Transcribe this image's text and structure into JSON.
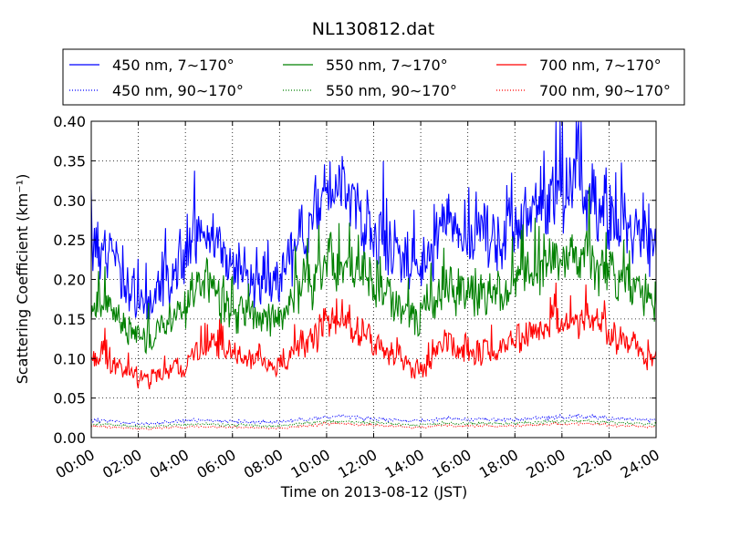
{
  "chart_data": {
    "type": "line",
    "title": "NL130812.dat",
    "xlabel": "Time on 2013-08-12 (JST)",
    "ylabel": "Scattering Coefficient (km⁻¹)",
    "xlim": [
      0,
      24
    ],
    "ylim": [
      0.0,
      0.4
    ],
    "x_tick_labels": [
      "00:00",
      "02:00",
      "04:00",
      "06:00",
      "08:00",
      "10:00",
      "12:00",
      "14:00",
      "16:00",
      "18:00",
      "20:00",
      "22:00",
      "24:00"
    ],
    "y_tick_labels": [
      "0.00",
      "0.05",
      "0.10",
      "0.15",
      "0.20",
      "0.25",
      "0.30",
      "0.35",
      "0.40"
    ],
    "grid": true,
    "legend_placement": "top",
    "x_hours": [
      0,
      0.5,
      1,
      1.5,
      2,
      2.5,
      3,
      3.5,
      4,
      4.5,
      5,
      5.5,
      6,
      6.5,
      7,
      7.5,
      8,
      8.5,
      9,
      9.5,
      10,
      10.5,
      11,
      11.5,
      12,
      12.5,
      13,
      13.5,
      14,
      14.5,
      15,
      15.5,
      16,
      16.5,
      17,
      17.5,
      18,
      18.5,
      19,
      19.5,
      20,
      20.5,
      21,
      21.5,
      22,
      22.5,
      23,
      23.5,
      24
    ],
    "series": [
      {
        "name": "450 nm, 7∼170°",
        "color": "#0000ff",
        "style": "solid",
        "values": [
          0.25,
          0.24,
          0.23,
          0.2,
          0.18,
          0.17,
          0.2,
          0.2,
          0.22,
          0.26,
          0.26,
          0.24,
          0.22,
          0.21,
          0.2,
          0.21,
          0.2,
          0.23,
          0.26,
          0.28,
          0.31,
          0.31,
          0.3,
          0.28,
          0.26,
          0.25,
          0.23,
          0.21,
          0.2,
          0.24,
          0.27,
          0.27,
          0.26,
          0.25,
          0.25,
          0.24,
          0.27,
          0.29,
          0.29,
          0.3,
          0.31,
          0.33,
          0.32,
          0.3,
          0.28,
          0.27,
          0.26,
          0.24,
          0.23
        ]
      },
      {
        "name": "550 nm, 7∼170°",
        "color": "#008000",
        "style": "solid",
        "values": [
          0.17,
          0.165,
          0.155,
          0.14,
          0.13,
          0.125,
          0.145,
          0.15,
          0.16,
          0.19,
          0.19,
          0.17,
          0.16,
          0.155,
          0.15,
          0.155,
          0.15,
          0.17,
          0.19,
          0.2,
          0.22,
          0.225,
          0.215,
          0.205,
          0.195,
          0.18,
          0.165,
          0.155,
          0.15,
          0.17,
          0.19,
          0.19,
          0.185,
          0.18,
          0.18,
          0.175,
          0.195,
          0.21,
          0.215,
          0.22,
          0.225,
          0.235,
          0.235,
          0.22,
          0.205,
          0.195,
          0.19,
          0.175,
          0.17
        ]
      },
      {
        "name": "700 nm, 7∼170°",
        "color": "#ff0000",
        "style": "solid",
        "values": [
          0.1,
          0.1,
          0.095,
          0.085,
          0.075,
          0.074,
          0.08,
          0.085,
          0.09,
          0.11,
          0.12,
          0.11,
          0.105,
          0.1,
          0.095,
          0.09,
          0.09,
          0.105,
          0.12,
          0.13,
          0.14,
          0.145,
          0.14,
          0.13,
          0.12,
          0.11,
          0.1,
          0.09,
          0.085,
          0.1,
          0.115,
          0.115,
          0.11,
          0.11,
          0.11,
          0.11,
          0.125,
          0.13,
          0.135,
          0.14,
          0.145,
          0.15,
          0.15,
          0.145,
          0.135,
          0.125,
          0.12,
          0.105,
          0.1
        ]
      },
      {
        "name": "450 nm, 90∼170°",
        "color": "#0000ff",
        "style": "dotted",
        "values": [
          0.022,
          0.022,
          0.021,
          0.019,
          0.018,
          0.018,
          0.019,
          0.02,
          0.021,
          0.022,
          0.022,
          0.021,
          0.021,
          0.02,
          0.02,
          0.02,
          0.02,
          0.021,
          0.023,
          0.024,
          0.026,
          0.027,
          0.026,
          0.025,
          0.024,
          0.023,
          0.022,
          0.021,
          0.021,
          0.022,
          0.024,
          0.024,
          0.023,
          0.023,
          0.023,
          0.022,
          0.023,
          0.024,
          0.025,
          0.025,
          0.026,
          0.027,
          0.027,
          0.026,
          0.025,
          0.024,
          0.023,
          0.022,
          0.022
        ]
      },
      {
        "name": "550 nm, 90∼170°",
        "color": "#008000",
        "style": "dotted",
        "values": [
          0.017,
          0.017,
          0.016,
          0.015,
          0.014,
          0.014,
          0.015,
          0.016,
          0.016,
          0.017,
          0.017,
          0.016,
          0.016,
          0.016,
          0.015,
          0.015,
          0.015,
          0.016,
          0.018,
          0.019,
          0.02,
          0.021,
          0.02,
          0.019,
          0.019,
          0.018,
          0.017,
          0.016,
          0.016,
          0.017,
          0.018,
          0.018,
          0.018,
          0.018,
          0.018,
          0.017,
          0.018,
          0.019,
          0.019,
          0.02,
          0.02,
          0.021,
          0.021,
          0.02,
          0.019,
          0.018,
          0.018,
          0.017,
          0.017
        ]
      },
      {
        "name": "700 nm, 90∼170°",
        "color": "#ff0000",
        "style": "dotted",
        "values": [
          0.014,
          0.014,
          0.013,
          0.012,
          0.011,
          0.011,
          0.012,
          0.013,
          0.013,
          0.014,
          0.014,
          0.013,
          0.013,
          0.013,
          0.012,
          0.012,
          0.012,
          0.013,
          0.015,
          0.016,
          0.017,
          0.018,
          0.017,
          0.016,
          0.016,
          0.015,
          0.014,
          0.013,
          0.013,
          0.014,
          0.015,
          0.015,
          0.015,
          0.015,
          0.015,
          0.014,
          0.015,
          0.016,
          0.016,
          0.017,
          0.017,
          0.018,
          0.018,
          0.017,
          0.016,
          0.015,
          0.015,
          0.014,
          0.014
        ]
      }
    ]
  }
}
